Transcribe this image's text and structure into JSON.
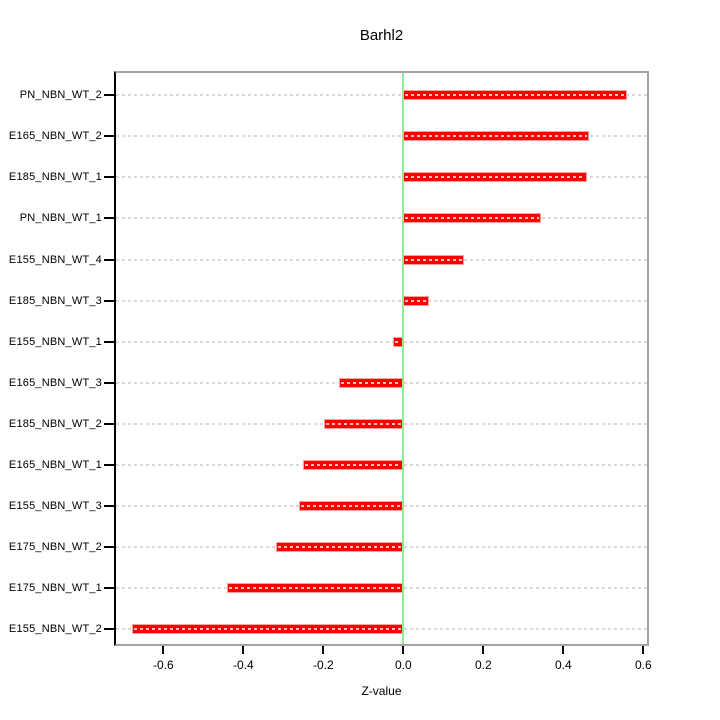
{
  "chart_data": {
    "type": "bar",
    "orientation": "horizontal",
    "title": "Barhl2",
    "xlabel": "Z-value",
    "ylabel": "",
    "categories": [
      "PN_NBN_WT_2",
      "E165_NBN_WT_2",
      "E185_NBN_WT_1",
      "PN_NBN_WT_1",
      "E155_NBN_WT_4",
      "E185_NBN_WT_3",
      "E155_NBN_WT_1",
      "E165_NBN_WT_3",
      "E185_NBN_WT_2",
      "E165_NBN_WT_1",
      "E155_NBN_WT_3",
      "E175_NBN_WT_2",
      "E175_NBN_WT_1",
      "E155_NBN_WT_2"
    ],
    "values": [
      0.56,
      0.465,
      0.46,
      0.345,
      0.152,
      0.065,
      -0.027,
      -0.16,
      -0.198,
      -0.252,
      -0.262,
      -0.319,
      -0.44,
      -0.679
    ],
    "x_tick_labels": [
      "-0.6",
      "-0.4",
      "-0.2",
      "0.0",
      "0.2",
      "0.4",
      "0.6"
    ],
    "x_tick_values": [
      -0.6,
      -0.4,
      -0.2,
      0.0,
      0.2,
      0.4,
      0.6
    ],
    "xlim": [
      -0.72,
      0.61
    ],
    "grid": "horizontal-dashed-per-category",
    "legend": "none",
    "reference_line_x": 0.0,
    "colors": {
      "bar_fill": "#ff0000",
      "bar_border": "#ff9f9f",
      "zero_line": "#90ee90",
      "grid_line": "#d9d9d9",
      "panel_border": "#a3a3a3",
      "axis": "#000000",
      "text": "#000000"
    }
  }
}
